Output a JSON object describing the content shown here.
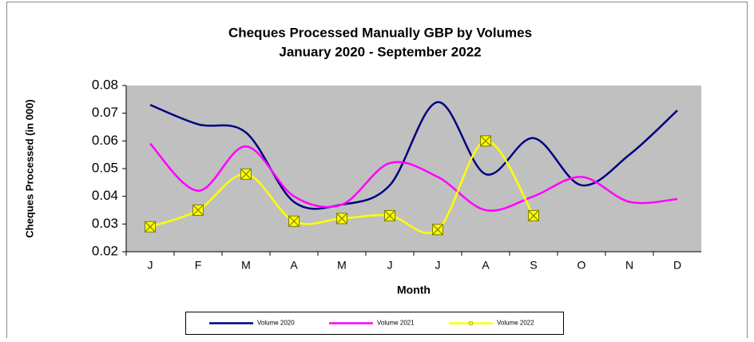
{
  "chart_data": {
    "type": "line",
    "title": "Cheques Processed Manually GBP by Volumes",
    "subtitle": "January 2020 - September 2022",
    "x_label": "Month",
    "y_label": "Cheques Processed (in 000)",
    "categories": [
      "J",
      "F",
      "M",
      "A",
      "M",
      "J",
      "J",
      "A",
      "S",
      "O",
      "N",
      "D"
    ],
    "series": [
      {
        "name": "Volume 2020",
        "color": "#000080",
        "marker": false,
        "values": [
          0.073,
          0.066,
          0.063,
          0.038,
          0.037,
          0.044,
          0.074,
          0.048,
          0.061,
          0.044,
          0.055,
          0.071
        ]
      },
      {
        "name": "Volume 2021",
        "color": "#ff00ff",
        "marker": false,
        "values": [
          0.059,
          0.042,
          0.058,
          0.04,
          0.037,
          0.052,
          0.047,
          0.035,
          0.04,
          0.047,
          0.038,
          0.039
        ]
      },
      {
        "name": "Volume 2022",
        "color": "#ffff00",
        "marker": true,
        "values": [
          0.029,
          0.035,
          0.048,
          0.031,
          0.032,
          0.033,
          0.028,
          0.06,
          0.033,
          null,
          null,
          null
        ]
      }
    ],
    "ylim": [
      0.02,
      0.08
    ],
    "yticks": [
      0.02,
      0.03,
      0.04,
      0.05,
      0.06,
      0.07,
      0.08
    ],
    "grid": false,
    "smooth": true,
    "legend": "bottom"
  }
}
